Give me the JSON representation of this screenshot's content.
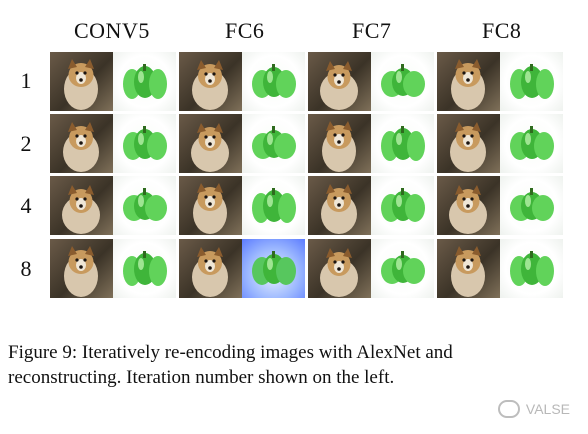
{
  "figure": {
    "column_titles": [
      "CONV5",
      "FC6",
      "FC7",
      "FC8"
    ],
    "row_labels": [
      "1",
      "2",
      "4",
      "8"
    ],
    "image_subjects": {
      "left": "dog-reconstruction",
      "right": "green-pepper-reconstruction"
    }
  },
  "caption": {
    "line1": "Figure 9: Iteratively re-encoding images with AlexNet and",
    "line2": "reconstructing. Iteration number shown on the left."
  },
  "watermark": {
    "text": "VALSE",
    "icon": "wechat-icon"
  }
}
